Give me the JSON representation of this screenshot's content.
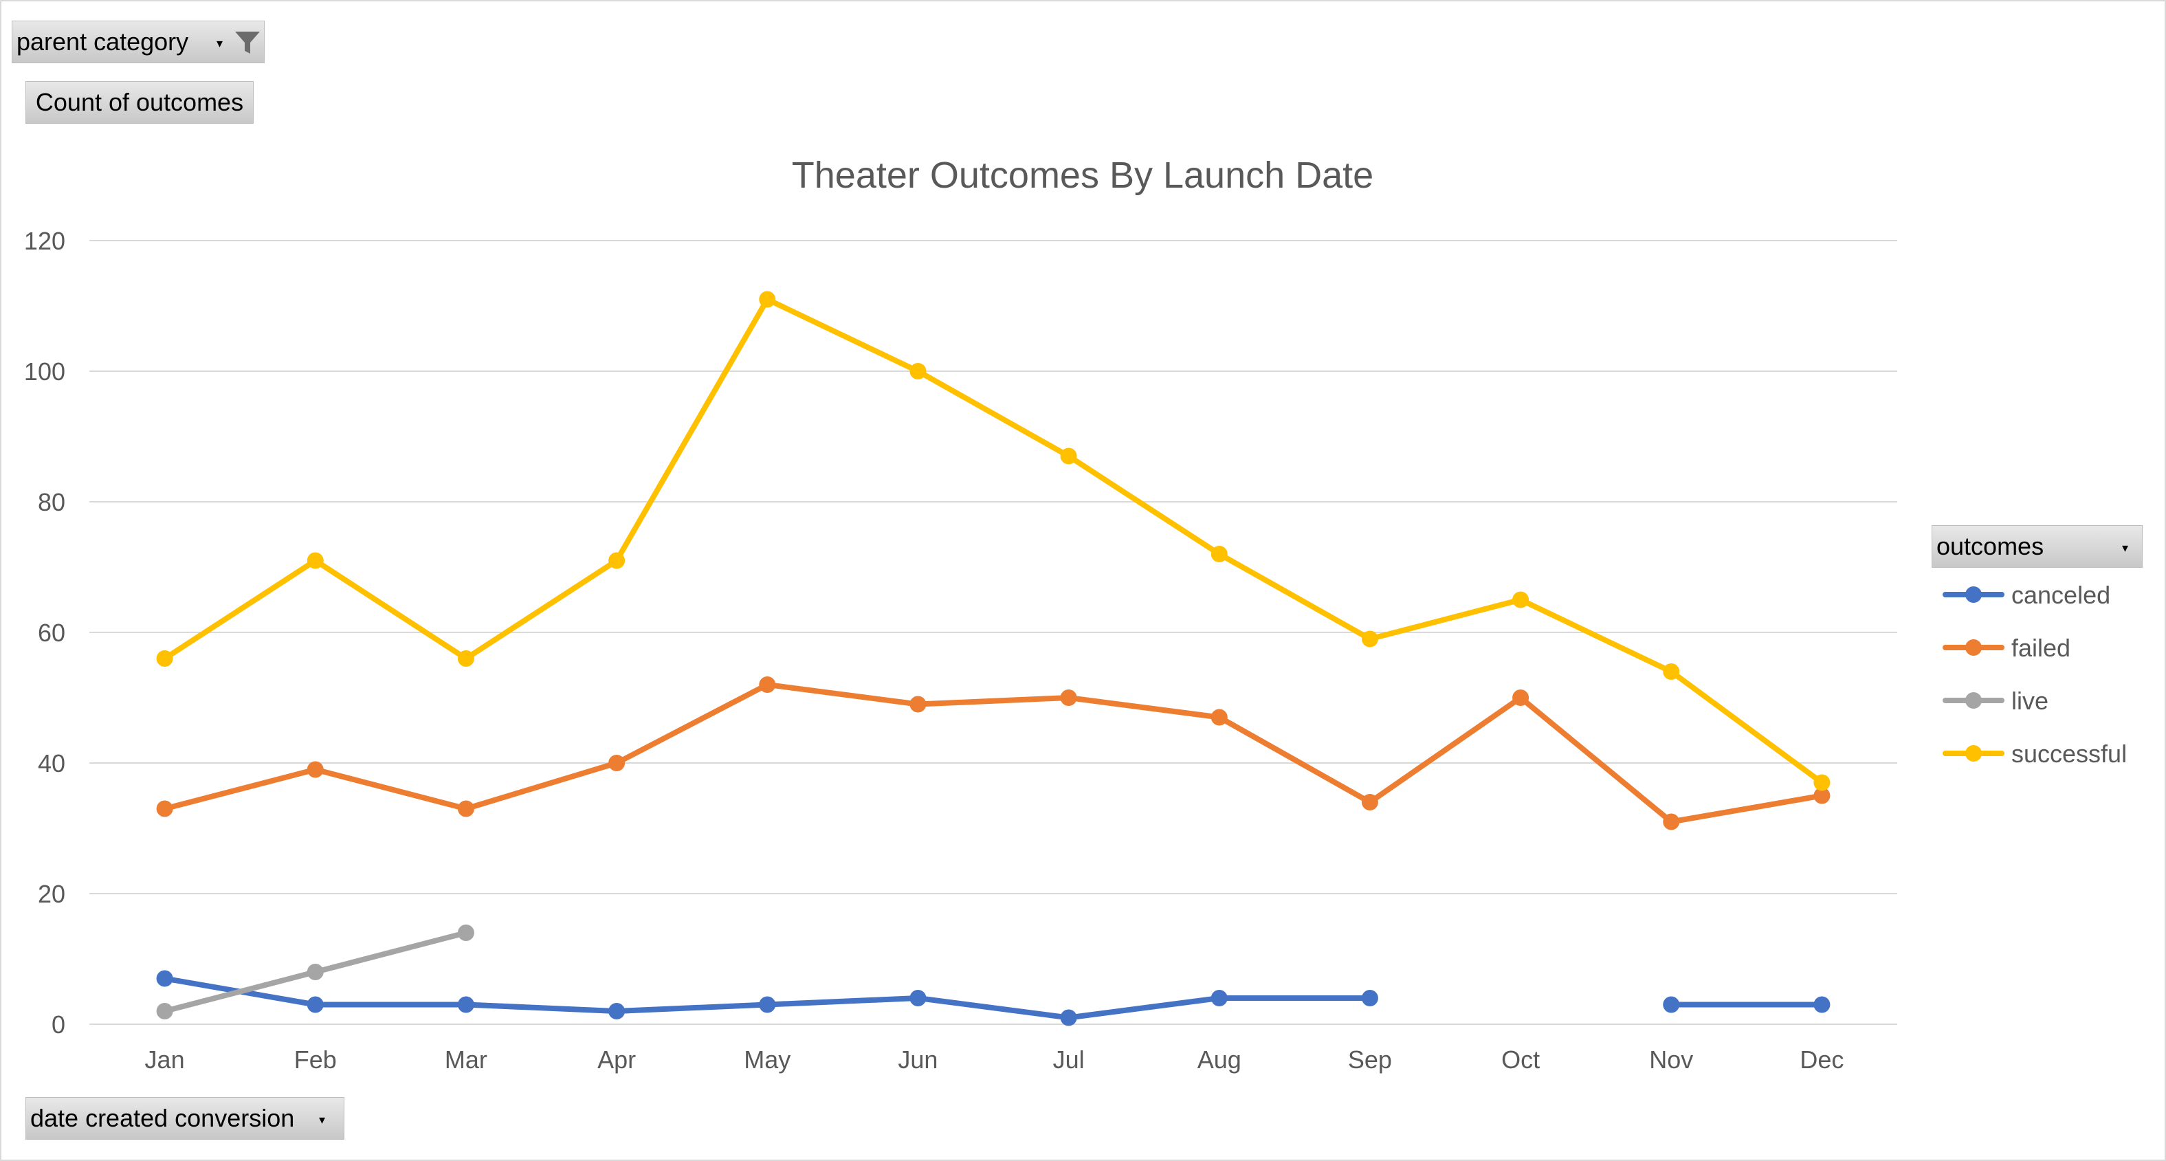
{
  "filters": {
    "report_filter_label": "parent category",
    "values_label": "Count of outcomes",
    "legend_field_label": "outcomes",
    "axis_field_label": "date created conversion"
  },
  "icons": {
    "filter": "funnel-filter-icon",
    "dropdown": "dropdown-arrow-icon"
  },
  "chart_data": {
    "type": "line",
    "title": "Theater Outcomes By Launch Date",
    "xlabel": "",
    "ylabel": "",
    "categories": [
      "Jan",
      "Feb",
      "Mar",
      "Apr",
      "May",
      "Jun",
      "Jul",
      "Aug",
      "Sep",
      "Oct",
      "Nov",
      "Dec"
    ],
    "ylim": [
      0,
      120
    ],
    "yticks": [
      0,
      20,
      40,
      60,
      80,
      100,
      120
    ],
    "grid": true,
    "legend_position": "right",
    "markers": true,
    "series": [
      {
        "name": "canceled",
        "color": "#4472C4",
        "values": [
          7,
          3,
          3,
          2,
          3,
          4,
          1,
          4,
          4,
          null,
          3,
          3
        ]
      },
      {
        "name": "failed",
        "color": "#ED7D31",
        "values": [
          33,
          39,
          33,
          40,
          52,
          49,
          50,
          47,
          34,
          50,
          31,
          35
        ]
      },
      {
        "name": "live",
        "color": "#A5A5A5",
        "values": [
          2,
          8,
          14,
          null,
          null,
          null,
          null,
          null,
          null,
          null,
          null,
          null
        ]
      },
      {
        "name": "successful",
        "color": "#FFC000",
        "values": [
          56,
          71,
          56,
          71,
          111,
          100,
          87,
          72,
          59,
          65,
          54,
          37
        ]
      }
    ]
  }
}
